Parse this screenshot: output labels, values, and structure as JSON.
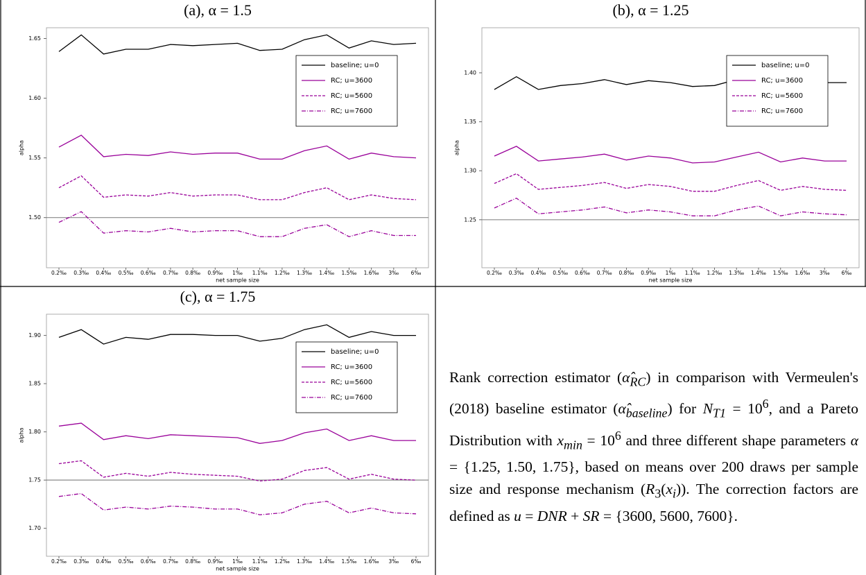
{
  "chart_data": [
    {
      "type": "line",
      "title": "(a), α = 1.5",
      "x_label": "net sample size",
      "y_label": "alpha",
      "categories": [
        "0.2‰",
        "0.3‰",
        "0.4‰",
        "0.5‰",
        "0.6‰",
        "0.7‰",
        "0.8‰",
        "0.9‰",
        "1‰",
        "1.1‰",
        "1.2‰",
        "1.3‰",
        "1.4‰",
        "1.5‰",
        "1.6‰",
        "3‰",
        "6‰"
      ],
      "ylim": [
        1.458,
        1.659
      ],
      "yticks": [
        {
          "value": 1.5,
          "label": "1.50"
        },
        1.55,
        {
          "value": 1.6,
          "label": "1.60"
        },
        1.65
      ],
      "hline": 1.5,
      "hline_color": "#888888",
      "legend": "right",
      "series": [
        {
          "name": "baseline; u=0",
          "color": "#000000",
          "style": "solid",
          "values": [
            1.639,
            1.653,
            1.637,
            1.641,
            1.641,
            1.645,
            1.644,
            1.645,
            1.646,
            1.64,
            1.641,
            1.649,
            1.653,
            1.642,
            1.648,
            1.645,
            1.646
          ]
        },
        {
          "name": "RC; u=3600",
          "color": "#990099",
          "style": "solid",
          "values": [
            1.559,
            1.569,
            1.551,
            1.553,
            1.552,
            1.555,
            1.553,
            1.554,
            1.554,
            1.549,
            1.549,
            1.556,
            1.56,
            1.549,
            1.554,
            1.551,
            1.55
          ]
        },
        {
          "name": "RC; u=5600",
          "color": "#990099",
          "style": "dashed",
          "values": [
            1.525,
            1.535,
            1.517,
            1.519,
            1.518,
            1.521,
            1.518,
            1.519,
            1.519,
            1.515,
            1.515,
            1.521,
            1.525,
            1.515,
            1.519,
            1.516,
            1.515
          ]
        },
        {
          "name": "RC; u=7600",
          "color": "#990099",
          "style": "dashdot",
          "values": [
            1.496,
            1.505,
            1.487,
            1.489,
            1.488,
            1.491,
            1.488,
            1.489,
            1.489,
            1.484,
            1.484,
            1.491,
            1.494,
            1.484,
            1.489,
            1.485,
            1.485
          ]
        }
      ]
    },
    {
      "type": "line",
      "title": "(b), α = 1.25",
      "x_label": "net sample size",
      "y_label": "alpha",
      "categories": [
        "0.2‰",
        "0.3‰",
        "0.4‰",
        "0.5‰",
        "0.6‰",
        "0.7‰",
        "0.8‰",
        "0.9‰",
        "1‰",
        "1.1‰",
        "1.2‰",
        "1.3‰",
        "1.4‰",
        "1.5‰",
        "1.6‰",
        "3‰",
        "6‰"
      ],
      "ylim": [
        1.201,
        1.446
      ],
      "yticks": [
        1.25,
        {
          "value": 1.3,
          "label": "1.30"
        },
        1.35,
        {
          "value": 1.4,
          "label": "1.40"
        }
      ],
      "hline": 1.25,
      "hline_color": "#888888",
      "legend": "right",
      "series": [
        {
          "name": "baseline; u=0",
          "color": "#000000",
          "style": "solid",
          "values": [
            1.383,
            1.396,
            1.383,
            1.387,
            1.389,
            1.393,
            1.388,
            1.392,
            1.39,
            1.386,
            1.387,
            1.393,
            1.398,
            1.388,
            1.392,
            1.39,
            1.39
          ]
        },
        {
          "name": "RC; u=3600",
          "color": "#990099",
          "style": "solid",
          "values": [
            1.315,
            1.325,
            1.31,
            1.312,
            1.314,
            1.317,
            1.311,
            1.315,
            1.313,
            1.308,
            1.309,
            1.314,
            1.319,
            1.309,
            1.313,
            1.31,
            1.31
          ]
        },
        {
          "name": "RC; u=5600",
          "color": "#990099",
          "style": "dashed",
          "values": [
            1.287,
            1.297,
            1.281,
            1.283,
            1.285,
            1.288,
            1.282,
            1.286,
            1.284,
            1.279,
            1.279,
            1.285,
            1.29,
            1.28,
            1.284,
            1.281,
            1.28
          ]
        },
        {
          "name": "RC; u=7600",
          "color": "#990099",
          "style": "dashdot",
          "values": [
            1.262,
            1.272,
            1.256,
            1.258,
            1.26,
            1.263,
            1.257,
            1.26,
            1.258,
            1.254,
            1.254,
            1.26,
            1.264,
            1.254,
            1.258,
            1.256,
            1.255
          ]
        }
      ]
    },
    {
      "type": "line",
      "title": "(c), α = 1.75",
      "x_label": "net sample size",
      "y_label": "alpha",
      "categories": [
        "0.2‰",
        "0.3‰",
        "0.4‰",
        "0.5‰",
        "0.6‰",
        "0.7‰",
        "0.8‰",
        "0.9‰",
        "1‰",
        "1.1‰",
        "1.2‰",
        "1.3‰",
        "1.4‰",
        "1.5‰",
        "1.6‰",
        "3‰",
        "6‰"
      ],
      "ylim": [
        1.671,
        1.922
      ],
      "yticks": [
        {
          "value": 1.7,
          "label": "1.70"
        },
        1.75,
        {
          "value": 1.8,
          "label": "1.80"
        },
        1.85,
        {
          "value": 1.9,
          "label": "1.90"
        }
      ],
      "hline": 1.75,
      "hline_color": "#888888",
      "legend": "right",
      "series": [
        {
          "name": "baseline; u=0",
          "color": "#000000",
          "style": "solid",
          "values": [
            1.898,
            1.906,
            1.891,
            1.898,
            1.896,
            1.901,
            1.901,
            1.9,
            1.9,
            1.894,
            1.897,
            1.906,
            1.911,
            1.898,
            1.904,
            1.9,
            1.9
          ]
        },
        {
          "name": "RC; u=3600",
          "color": "#990099",
          "style": "solid",
          "values": [
            1.806,
            1.809,
            1.792,
            1.796,
            1.793,
            1.797,
            1.796,
            1.795,
            1.794,
            1.788,
            1.791,
            1.799,
            1.803,
            1.791,
            1.796,
            1.791,
            1.791
          ]
        },
        {
          "name": "RC; u=5600",
          "color": "#990099",
          "style": "dashed",
          "values": [
            1.767,
            1.77,
            1.753,
            1.757,
            1.754,
            1.758,
            1.756,
            1.755,
            1.754,
            1.749,
            1.751,
            1.76,
            1.763,
            1.751,
            1.756,
            1.751,
            1.75
          ]
        },
        {
          "name": "RC; u=7600",
          "color": "#990099",
          "style": "dashdot",
          "values": [
            1.733,
            1.736,
            1.719,
            1.722,
            1.72,
            1.723,
            1.722,
            1.72,
            1.72,
            1.714,
            1.716,
            1.725,
            1.728,
            1.716,
            1.721,
            1.716,
            1.715
          ]
        }
      ]
    }
  ],
  "caption": [
    "Rank correction estimator (",
    "α̂",
    "RC",
    ") in comparison with Vermeulen's (2018) baseline estimator (",
    "α̂",
    "baseline",
    ") for ",
    "N",
    "T1",
    " = 10",
    "6",
    ", and a Pareto Distribution with ",
    "x",
    "min",
    " = 10",
    "6",
    " and three different shape parameters ",
    "α",
    " = {1.25, 1.50, 1.75}, based on means over 200 draws per sample size and response mechanism (",
    "R",
    "3",
    "(",
    "x",
    "i",
    ")). The correction factors are defined as ",
    "u",
    " = ",
    "DNR",
    " + ",
    "SR",
    " = {3600, 5600, 7600}."
  ]
}
